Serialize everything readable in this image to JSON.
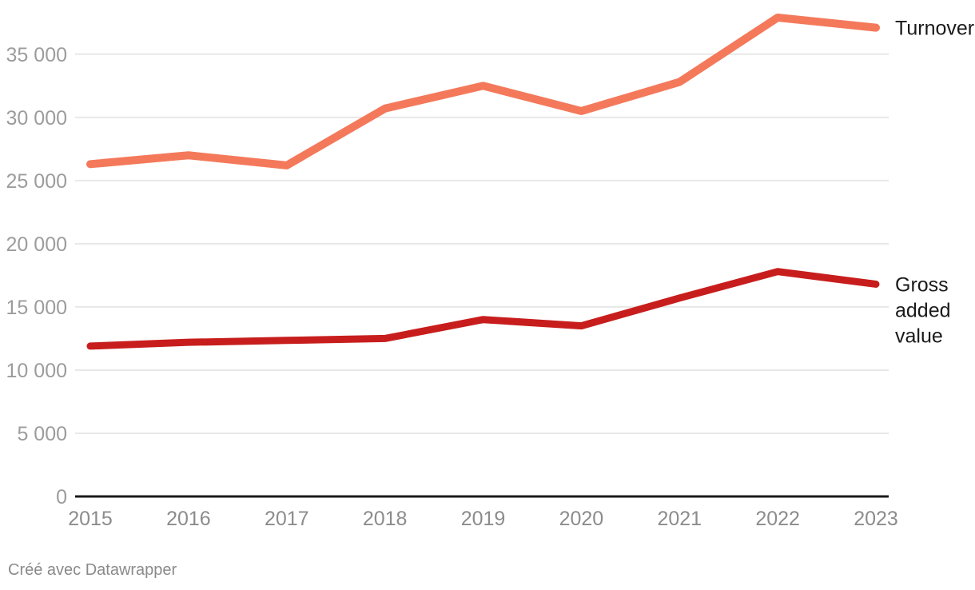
{
  "page": {
    "background_color": "#ffffff"
  },
  "footer": {
    "attribution": "Créé avec Datawrapper"
  },
  "chart_data": {
    "type": "line",
    "title": "",
    "xlabel": "",
    "ylabel": "",
    "x": [
      "2015",
      "2016",
      "2017",
      "2018",
      "2019",
      "2020",
      "2021",
      "2022",
      "2023"
    ],
    "series": [
      {
        "name": "Turnover",
        "label_lines": [
          "Turnover"
        ],
        "color": "#f4795b",
        "values": [
          26300,
          27000,
          26200,
          30700,
          32500,
          30500,
          32800,
          37900,
          37100
        ]
      },
      {
        "name": "Gross added value",
        "label_lines": [
          "Gross",
          "added",
          "value"
        ],
        "color": "#c71e1d",
        "values": [
          11900,
          12200,
          12350,
          12500,
          14000,
          13500,
          15700,
          17800,
          16800
        ]
      }
    ],
    "y_ticks": [
      {
        "value": 0,
        "label": "0"
      },
      {
        "value": 5000,
        "label": "5 000"
      },
      {
        "value": 10000,
        "label": "10 000"
      },
      {
        "value": 15000,
        "label": "15 000"
      },
      {
        "value": 20000,
        "label": "20 000"
      },
      {
        "value": 25000,
        "label": "25 000"
      },
      {
        "value": 30000,
        "label": "30 000"
      },
      {
        "value": 35000,
        "label": "35 000"
      }
    ],
    "ylim": [
      0,
      39000
    ],
    "grid": "horizontal",
    "legend_position": "right-of-line-end",
    "colors": {
      "grid_line": "#e8e8e8",
      "baseline": "#1a1a1a",
      "y_tick_label": "#9c9c9c",
      "x_tick_label": "#8c8c8c",
      "series_label_text": "#1a1a1a"
    }
  }
}
